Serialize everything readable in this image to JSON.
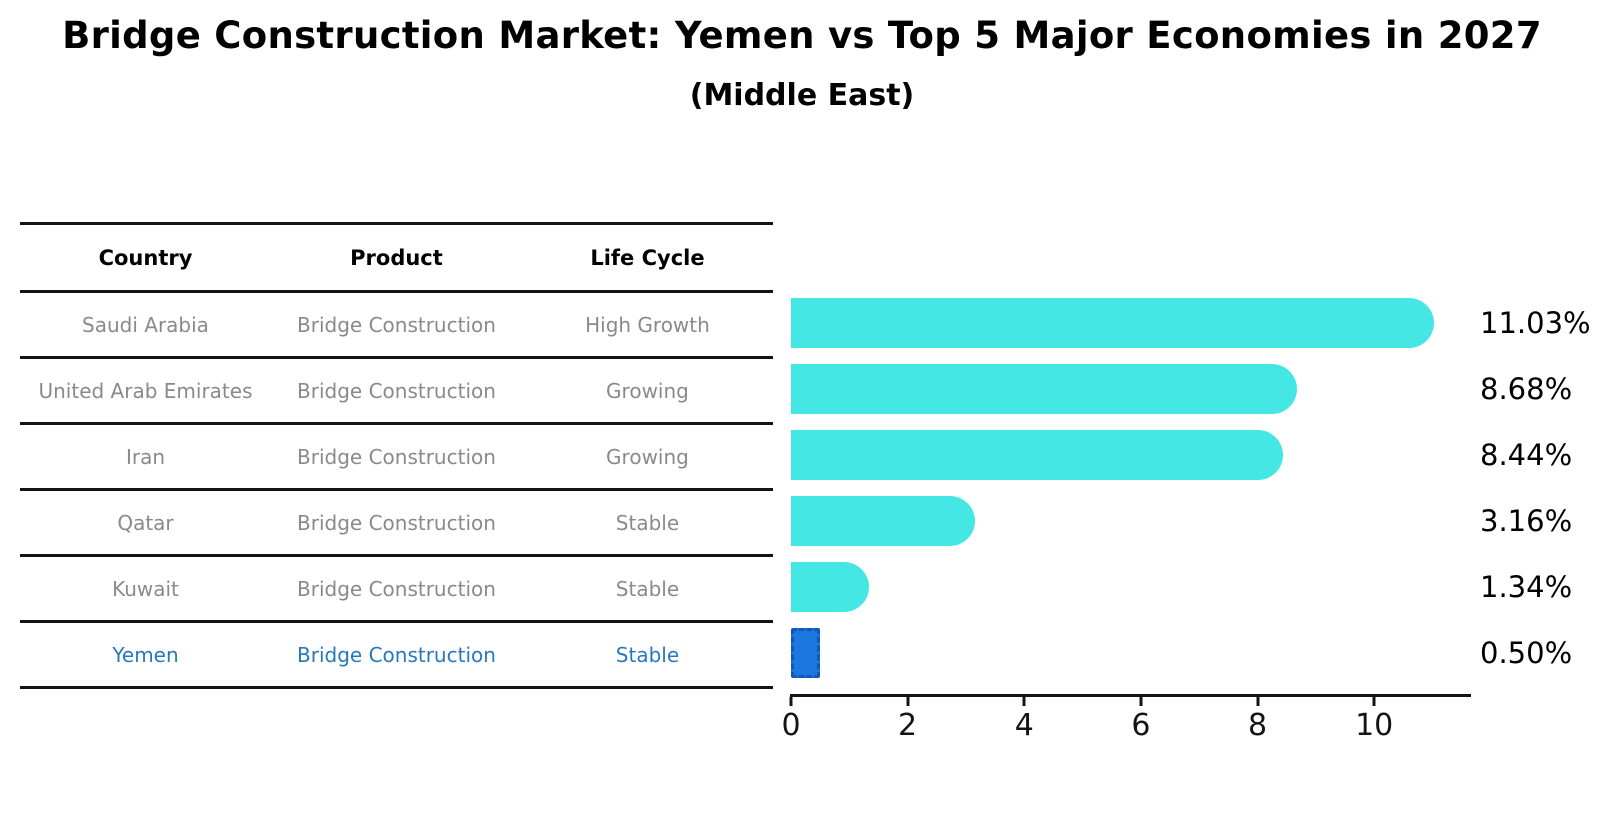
{
  "title": "Bridge Construction Market: Yemen vs Top 5 Major Economies in 2027",
  "subtitle": "(Middle East)",
  "table": {
    "headers": {
      "country": "Country",
      "product": "Product",
      "life_cycle": "Life Cycle"
    },
    "rows": [
      {
        "country": "Saudi Arabia",
        "product": "Bridge Construction",
        "life_cycle": "High Growth"
      },
      {
        "country": "United Arab Emirates",
        "product": "Bridge Construction",
        "life_cycle": "Growing"
      },
      {
        "country": "Iran",
        "product": "Bridge Construction",
        "life_cycle": "Growing"
      },
      {
        "country": "Qatar",
        "product": "Bridge Construction",
        "life_cycle": "Stable"
      },
      {
        "country": "Kuwait",
        "product": "Bridge Construction",
        "life_cycle": "Stable"
      },
      {
        "country": "Yemen",
        "product": "Bridge Construction",
        "life_cycle": "Stable"
      }
    ],
    "highlighted_row": "Yemen"
  },
  "chart_data": {
    "type": "bar",
    "orientation": "horizontal",
    "title": "Bridge Construction Market: Yemen vs Top 5 Major Economies in 2027",
    "subtitle": "(Middle East)",
    "categories": [
      "Saudi Arabia",
      "United Arab Emirates",
      "Iran",
      "Qatar",
      "Kuwait",
      "Yemen"
    ],
    "values": [
      11.03,
      8.68,
      8.44,
      3.16,
      1.34,
      0.5
    ],
    "value_labels": [
      "11.03%",
      "8.68%",
      "8.44%",
      "3.16%",
      "1.34%",
      "0.50%"
    ],
    "unit": "percent",
    "x_tick_labels": [
      "0",
      "2",
      "4",
      "6",
      "8",
      "10"
    ],
    "x_tick_values": [
      0,
      2,
      4,
      6,
      8,
      10
    ],
    "xlim": [
      0,
      11.66
    ],
    "grid": "off",
    "legend": "none",
    "highlight_index": 5,
    "bar_color": "#44e7e3",
    "highlight_bar_color": "#1b78e1",
    "highlight_bar_border_color": "#0f58b8"
  },
  "colors": {
    "background": "#ffffff",
    "table_line": "#141414",
    "table_text": "#8a8a8a",
    "header_text": "#000000",
    "highlight_text": "#2878be",
    "axis": "#141414",
    "value_label_text": "#000000"
  }
}
